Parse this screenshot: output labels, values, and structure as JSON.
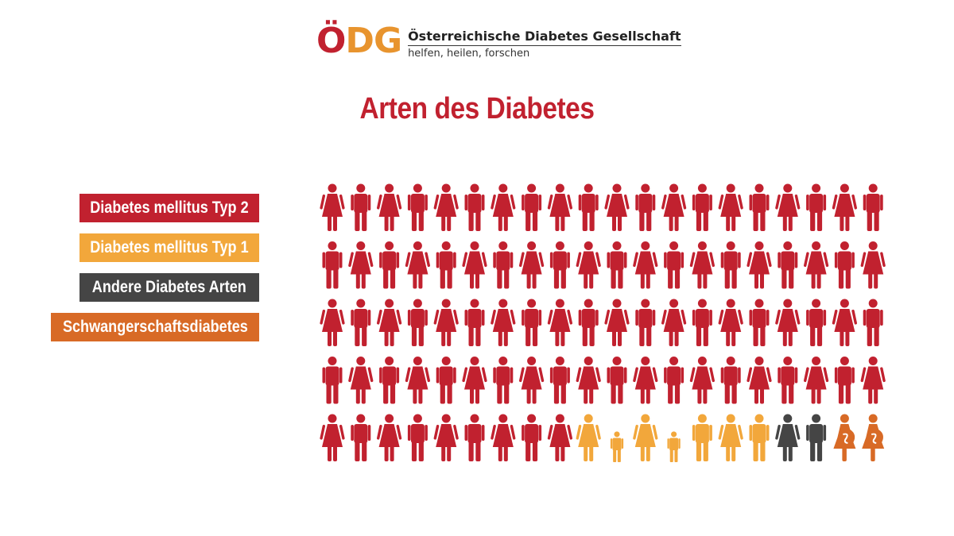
{
  "header": {
    "logo_letters": [
      "Ö",
      "D",
      "G"
    ],
    "logo_colors": [
      "#c1212f",
      "#e8942e",
      "#e8942e"
    ],
    "org_name": "Österreichische Diabetes Gesellschaft",
    "slogan": "helfen, heilen, forschen"
  },
  "chart_data": {
    "type": "pictogram",
    "title": "Arten des Diabetes",
    "total_icons": 100,
    "columns": 20,
    "rows": 5,
    "series": [
      {
        "name": "Diabetes mellitus Typ 2",
        "value": 89,
        "color": "#c1212f"
      },
      {
        "name": "Diabetes mellitus Typ 1",
        "value": 7,
        "color": "#f2a73b"
      },
      {
        "name": "Andere Diabetes Arten",
        "value": 2,
        "color": "#454545"
      },
      {
        "name": "Schwangerschaftsdiabetes",
        "value": 2,
        "color": "#d86a26"
      }
    ],
    "legend_position": "left"
  }
}
